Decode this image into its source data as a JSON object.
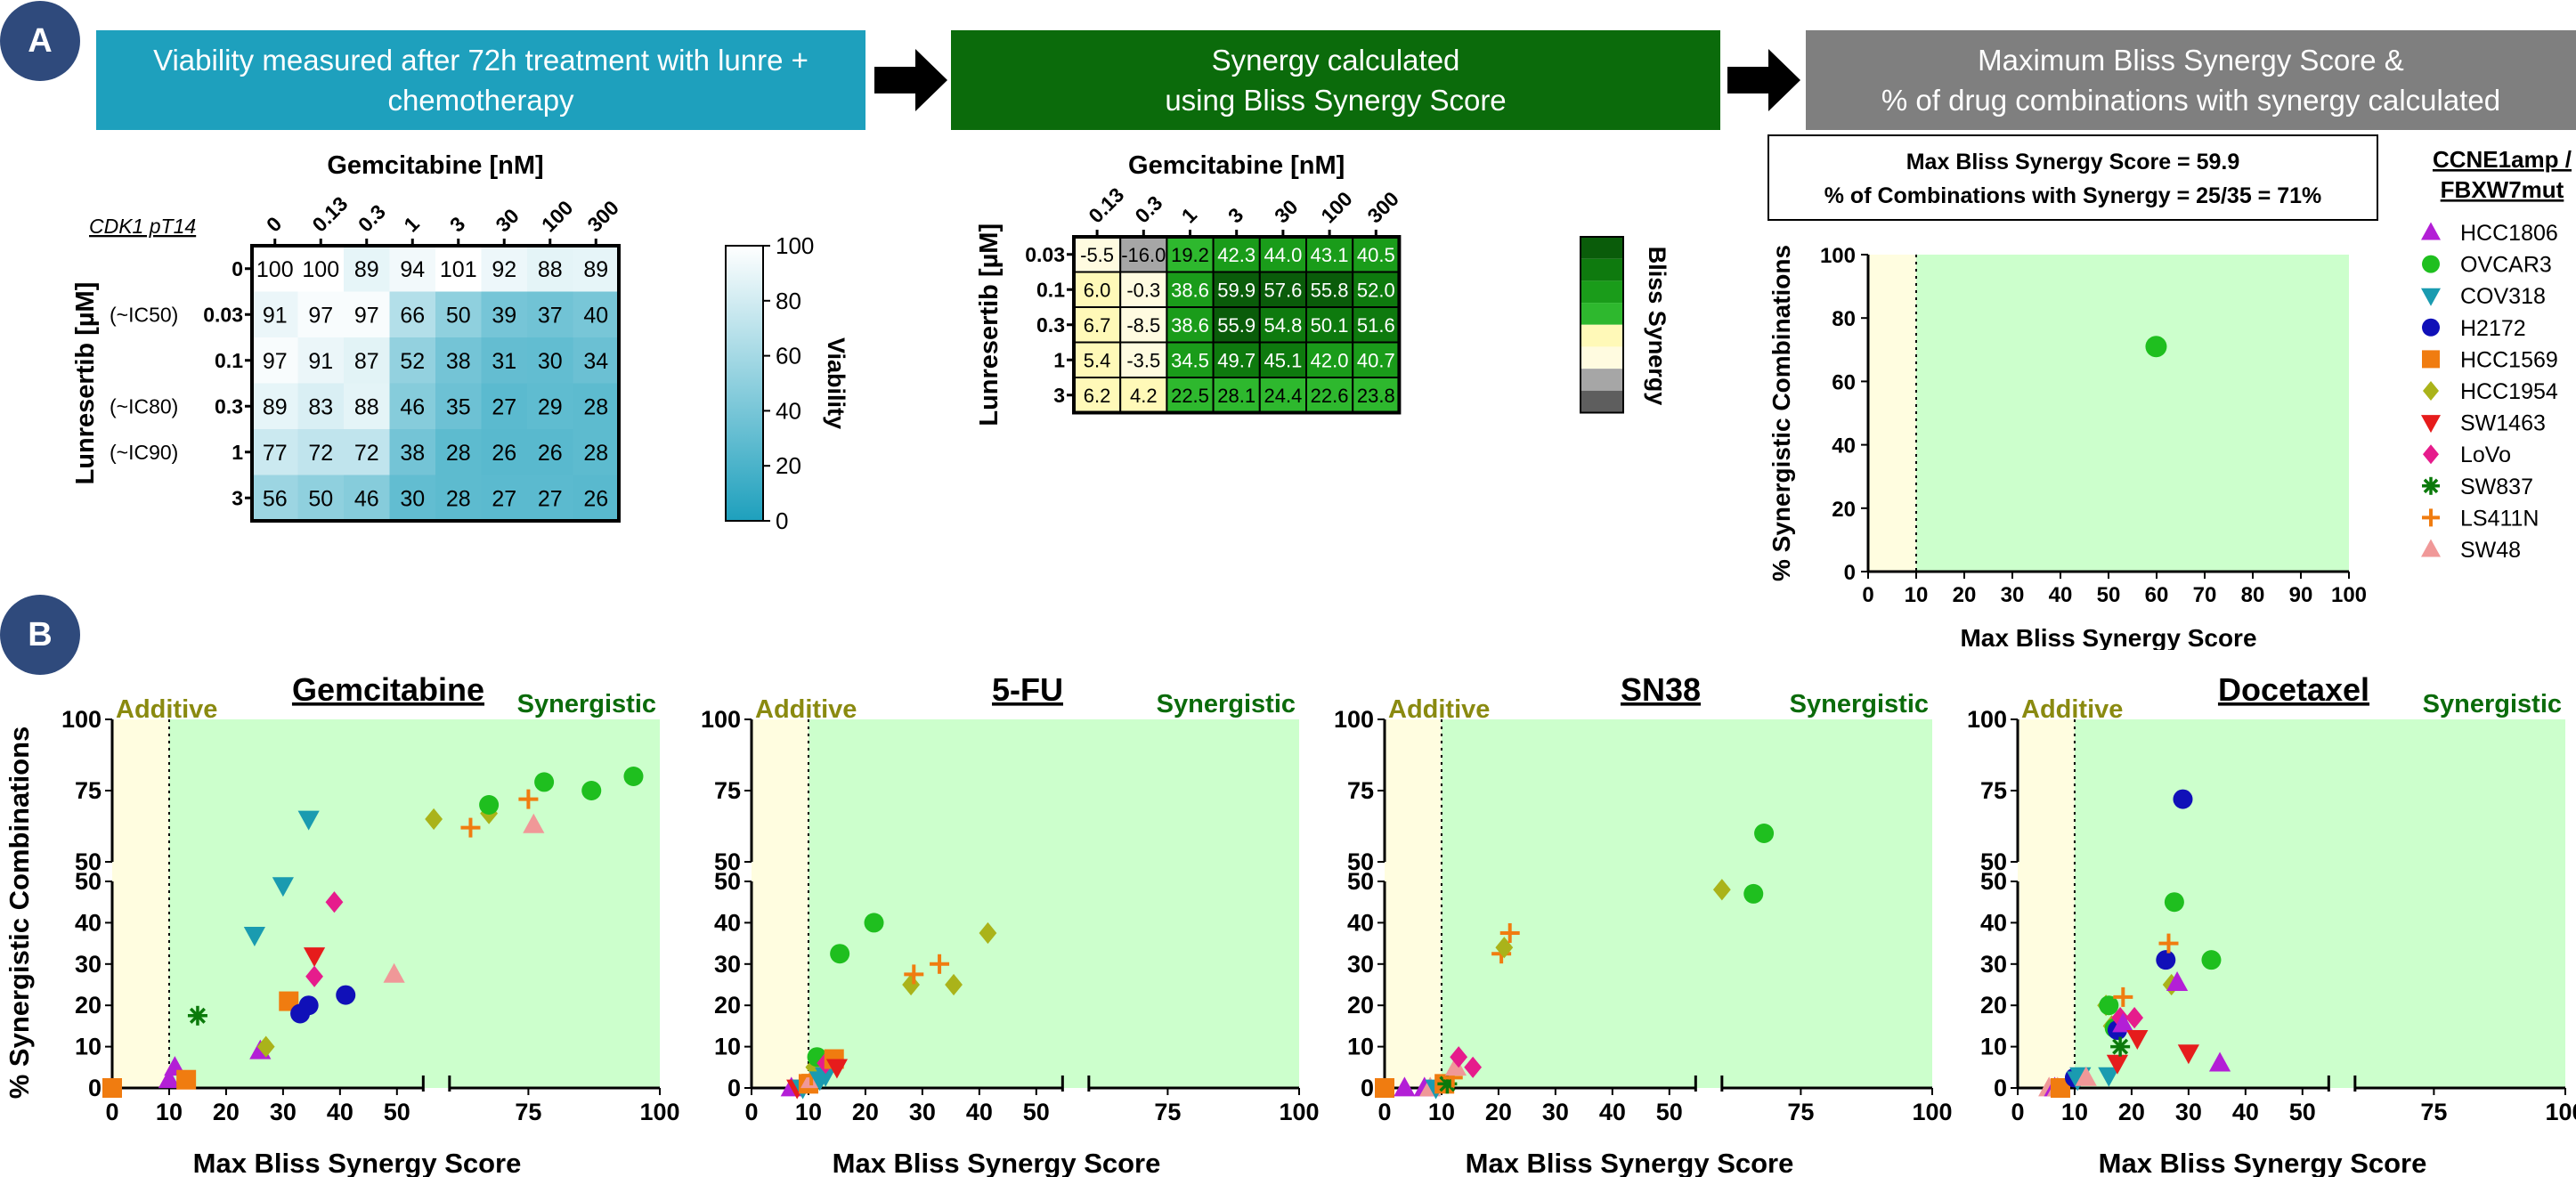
{
  "panel_a": {
    "label": "A",
    "step1": "Viability measured after 72h treatment with lunre + chemotherapy",
    "step2_line1": "Synergy calculated",
    "step2_line2": "using Bliss Synergy Score",
    "step3_line1": "Maximum Bliss Synergy Score &",
    "step3_line2": "% of drug combinations with synergy calculated",
    "colors": {
      "step1": "#1ea0bd",
      "step2": "#0b6b0b",
      "step3": "#7f7f7f",
      "label_circle": "#2f4a7c"
    },
    "viability": {
      "side_note": "CDK1 pT14",
      "xlabel": "Gemcitabine [nM]",
      "ylabel": "Lunresertib [µM]",
      "cols": [
        "0",
        "0.13",
        "0.3",
        "1",
        "3",
        "30",
        "100",
        "300"
      ],
      "rows": [
        "0",
        "0.03",
        "0.1",
        "0.3",
        "1",
        "3"
      ],
      "row_notes": [
        "",
        "(~IC50)",
        "",
        "(~IC80)",
        "(~IC90)",
        ""
      ],
      "values": [
        [
          100,
          100,
          89,
          94,
          101,
          92,
          88,
          89
        ],
        [
          91,
          97,
          97,
          66,
          50,
          39,
          37,
          40
        ],
        [
          97,
          91,
          87,
          52,
          38,
          31,
          30,
          34
        ],
        [
          89,
          83,
          88,
          46,
          35,
          27,
          29,
          28
        ],
        [
          77,
          72,
          72,
          38,
          28,
          26,
          26,
          28
        ],
        [
          56,
          50,
          46,
          30,
          28,
          27,
          27,
          26
        ]
      ],
      "colorbar_label": "Viability",
      "colorbar_ticks": [
        "100",
        "80",
        "60",
        "40",
        "20",
        "0"
      ]
    },
    "bliss": {
      "xlabel": "Gemcitabine [nM]",
      "ylabel": "Lunresertib [µM]",
      "cols": [
        "0.13",
        "0.3",
        "1",
        "3",
        "30",
        "100",
        "300"
      ],
      "rows": [
        "0.03",
        "0.1",
        "0.3",
        "1",
        "3"
      ],
      "values": [
        [
          "-5.5",
          "-16.0",
          "19.2",
          "42.3",
          "44.0",
          "43.1",
          "40.5"
        ],
        [
          "6.0",
          "-0.3",
          "38.6",
          "59.9",
          "57.6",
          "55.8",
          "52.0"
        ],
        [
          "6.7",
          "-8.5",
          "38.6",
          "55.9",
          "54.8",
          "50.1",
          "51.6"
        ],
        [
          "5.4",
          "-3.5",
          "34.5",
          "49.7",
          "45.1",
          "42.0",
          "40.7"
        ],
        [
          "6.2",
          "4.2",
          "22.5",
          "28.1",
          "24.4",
          "22.6",
          "23.8"
        ]
      ],
      "colorbar_label": "Bliss Synergy"
    },
    "summary": {
      "box_line1": "Max Bliss Synergy Score = 59.9",
      "box_line2": "% of Combinations with Synergy = 25/35 = 71%",
      "xlabel": "Max Bliss Synergy Score",
      "ylabel": "% Synergistic Combinations",
      "xticks": [
        "0",
        "10",
        "20",
        "30",
        "40",
        "50",
        "60",
        "70",
        "80",
        "90",
        "100"
      ],
      "yticks": [
        "0",
        "20",
        "40",
        "60",
        "80",
        "100"
      ]
    },
    "legend": {
      "title_line1": "CCNE1amp /",
      "title_line2": "FBXW7mut",
      "items": [
        {
          "name": "HCC1806",
          "color": "#b31fd6",
          "shape": "triangle"
        },
        {
          "name": "OVCAR3",
          "color": "#1fbf1f",
          "shape": "circle"
        },
        {
          "name": "COV318",
          "color": "#1a9bb0",
          "shape": "triangle-down"
        },
        {
          "name": "H2172",
          "color": "#1010b8",
          "shape": "circle"
        },
        {
          "name": "HCC1569",
          "color": "#f07c10",
          "shape": "square"
        },
        {
          "name": "HCC1954",
          "color": "#aab31a",
          "shape": "diamond"
        },
        {
          "name": "SW1463",
          "color": "#e61c1c",
          "shape": "triangle-down"
        },
        {
          "name": "LoVo",
          "color": "#e61c8c",
          "shape": "diamond"
        },
        {
          "name": "SW837",
          "color": "#0b7a0b",
          "shape": "star"
        },
        {
          "name": "LS411N",
          "color": "#f07c10",
          "shape": "plus"
        },
        {
          "name": "SW48",
          "color": "#f09898",
          "shape": "triangle"
        }
      ]
    }
  },
  "panel_b": {
    "label": "B",
    "ylabel": "% Synergistic Combinations",
    "additive_label": "Additive",
    "synergistic_label": "Synergistic"
  },
  "chart_data": [
    {
      "type": "heatmap",
      "title": "Gemcitabine [nM]",
      "xlabel": "Gemcitabine [nM]",
      "ylabel": "Lunresertib [µM]",
      "x": [
        "0",
        "0.13",
        "0.3",
        "1",
        "3",
        "30",
        "100",
        "300"
      ],
      "y": [
        "0",
        "0.03",
        "0.1",
        "0.3",
        "1",
        "3"
      ],
      "values": [
        [
          100,
          100,
          89,
          94,
          101,
          92,
          88,
          89
        ],
        [
          91,
          97,
          97,
          66,
          50,
          39,
          37,
          40
        ],
        [
          97,
          91,
          87,
          52,
          38,
          31,
          30,
          34
        ],
        [
          89,
          83,
          88,
          46,
          35,
          27,
          29,
          28
        ],
        [
          77,
          72,
          72,
          38,
          28,
          26,
          26,
          28
        ],
        [
          56,
          50,
          46,
          30,
          28,
          27,
          27,
          26
        ]
      ],
      "colorbar": "Viability",
      "range": [
        0,
        100
      ]
    },
    {
      "type": "heatmap",
      "title": "Gemcitabine [nM]",
      "xlabel": "Gemcitabine [nM]",
      "ylabel": "Lunresertib [µM]",
      "x": [
        "0.13",
        "0.3",
        "1",
        "3",
        "30",
        "100",
        "300"
      ],
      "y": [
        "0.03",
        "0.1",
        "0.3",
        "1",
        "3"
      ],
      "values": [
        [
          -5.5,
          -16.0,
          19.2,
          42.3,
          44.0,
          43.1,
          40.5
        ],
        [
          6.0,
          -0.3,
          38.6,
          59.9,
          57.6,
          55.8,
          52.0
        ],
        [
          6.7,
          -8.5,
          38.6,
          55.9,
          54.8,
          50.1,
          51.6
        ],
        [
          5.4,
          -3.5,
          34.5,
          49.7,
          45.1,
          42.0,
          40.7
        ],
        [
          6.2,
          4.2,
          22.5,
          28.1,
          24.4,
          22.6,
          23.8
        ]
      ],
      "colorbar": "Bliss Synergy"
    },
    {
      "type": "scatter",
      "xlabel": "Max Bliss Synergy Score",
      "ylabel": "% Synergistic Combinations",
      "xlim": [
        0,
        100
      ],
      "ylim": [
        0,
        100
      ],
      "threshold_x": 10,
      "points": [
        {
          "series": "OVCAR3",
          "x": 59.9,
          "y": 71
        }
      ]
    },
    {
      "type": "scatter",
      "title": "Gemcitabine",
      "xlabel": "Max Bliss Synergy Score",
      "ylabel": "% Synergistic Combinations",
      "xlim": [
        0,
        100
      ],
      "ylim": [
        0,
        100
      ],
      "broken_axes": true,
      "threshold_x": 10,
      "xticks": [
        "0",
        "10",
        "20",
        "30",
        "40",
        "50",
        "75",
        "100"
      ],
      "yticks": [
        "0",
        "10",
        "20",
        "30",
        "40",
        "50",
        "50",
        "75",
        "100"
      ],
      "points": [
        {
          "series": "HCC1569",
          "x": 0,
          "y": 0
        },
        {
          "series": "HCC1806",
          "x": 10,
          "y": 2
        },
        {
          "series": "HCC1806",
          "x": 11,
          "y": 5
        },
        {
          "series": "HCC1569",
          "x": 13,
          "y": 2
        },
        {
          "series": "SW837",
          "x": 15,
          "y": 17.5
        },
        {
          "series": "HCC1806",
          "x": 26,
          "y": 9
        },
        {
          "series": "HCC1954",
          "x": 27,
          "y": 10
        },
        {
          "series": "COV318",
          "x": 25,
          "y": 37
        },
        {
          "series": "COV318",
          "x": 30,
          "y": 49
        },
        {
          "series": "HCC1569",
          "x": 31,
          "y": 21
        },
        {
          "series": "H2172",
          "x": 33,
          "y": 18
        },
        {
          "series": "H2172",
          "x": 34.5,
          "y": 20
        },
        {
          "series": "COV318",
          "x": 34.5,
          "y": 65
        },
        {
          "series": "SW1463",
          "x": 35.5,
          "y": 32
        },
        {
          "series": "LoVo",
          "x": 35.5,
          "y": 27
        },
        {
          "series": "LoVo",
          "x": 39,
          "y": 45
        },
        {
          "series": "H2172",
          "x": 41,
          "y": 22.5
        },
        {
          "series": "SW48",
          "x": 49.5,
          "y": 27.5
        },
        {
          "series": "HCC1954",
          "x": 57,
          "y": 65
        },
        {
          "series": "LS411N",
          "x": 64,
          "y": 62
        },
        {
          "series": "HCC1954",
          "x": 67.5,
          "y": 67
        },
        {
          "series": "OVCAR3",
          "x": 67.5,
          "y": 70
        },
        {
          "series": "LS411N",
          "x": 75,
          "y": 72
        },
        {
          "series": "SW48",
          "x": 76,
          "y": 63
        },
        {
          "series": "OVCAR3",
          "x": 78,
          "y": 78
        },
        {
          "series": "OVCAR3",
          "x": 87,
          "y": 75
        },
        {
          "series": "OVCAR3",
          "x": 95,
          "y": 80
        }
      ]
    },
    {
      "type": "scatter",
      "title": "5-FU",
      "xlabel": "Max Bliss Synergy Score",
      "ylabel": "% Synergistic Combinations",
      "xlim": [
        0,
        100
      ],
      "ylim": [
        0,
        100
      ],
      "broken_axes": true,
      "threshold_x": 10,
      "points": [
        {
          "series": "HCC1806",
          "x": 7,
          "y": 0
        },
        {
          "series": "SW1463",
          "x": 8,
          "y": 0
        },
        {
          "series": "COV318",
          "x": 9,
          "y": 0
        },
        {
          "series": "HCC1569",
          "x": 10,
          "y": 1
        },
        {
          "series": "SW48",
          "x": 10.5,
          "y": 2
        },
        {
          "series": "LS411N",
          "x": 10.5,
          "y": 3
        },
        {
          "series": "HCC1954",
          "x": 11,
          "y": 5
        },
        {
          "series": "OVCAR3",
          "x": 11.5,
          "y": 7.5
        },
        {
          "series": "COV318",
          "x": 12,
          "y": 2
        },
        {
          "series": "COV318",
          "x": 13,
          "y": 3
        },
        {
          "series": "LoVo",
          "x": 13,
          "y": 6
        },
        {
          "series": "HCC1569",
          "x": 14.5,
          "y": 7
        },
        {
          "series": "SW1463",
          "x": 15,
          "y": 5
        },
        {
          "series": "OVCAR3",
          "x": 15.5,
          "y": 32.5
        },
        {
          "series": "OVCAR3",
          "x": 21.5,
          "y": 40
        },
        {
          "series": "HCC1954",
          "x": 28,
          "y": 25
        },
        {
          "series": "LS411N",
          "x": 28.5,
          "y": 27.5
        },
        {
          "series": "LS411N",
          "x": 33,
          "y": 30
        },
        {
          "series": "HCC1954",
          "x": 35.5,
          "y": 25
        },
        {
          "series": "HCC1954",
          "x": 41.5,
          "y": 37.5
        }
      ]
    },
    {
      "type": "scatter",
      "title": "SN38",
      "xlabel": "Max Bliss Synergy Score",
      "ylabel": "% Synergistic Combinations",
      "xlim": [
        0,
        100
      ],
      "ylim": [
        0,
        100
      ],
      "broken_axes": true,
      "threshold_x": 10,
      "points": [
        {
          "series": "HCC1569",
          "x": 0,
          "y": 0
        },
        {
          "series": "HCC1806",
          "x": 3.5,
          "y": 0
        },
        {
          "series": "HCC1806",
          "x": 7,
          "y": 0
        },
        {
          "series": "SW48",
          "x": 8,
          "y": 0
        },
        {
          "series": "COV318",
          "x": 9,
          "y": 0
        },
        {
          "series": "HCC1569",
          "x": 10.5,
          "y": 1
        },
        {
          "series": "SW837",
          "x": 11,
          "y": 1
        },
        {
          "series": "LS411N",
          "x": 12,
          "y": 2.5
        },
        {
          "series": "SW48",
          "x": 12.5,
          "y": 5
        },
        {
          "series": "LoVo",
          "x": 13,
          "y": 7.5
        },
        {
          "series": "LoVo",
          "x": 15.5,
          "y": 5
        },
        {
          "series": "LS411N",
          "x": 20.5,
          "y": 32.5
        },
        {
          "series": "HCC1954",
          "x": 21,
          "y": 34
        },
        {
          "series": "LS411N",
          "x": 22,
          "y": 37.5
        },
        {
          "series": "HCC1954",
          "x": 60,
          "y": 48
        },
        {
          "series": "OVCAR3",
          "x": 66,
          "y": 47
        },
        {
          "series": "OVCAR3",
          "x": 68,
          "y": 60
        }
      ]
    },
    {
      "type": "scatter",
      "title": "Docetaxel",
      "xlabel": "Max Bliss Synergy Score",
      "ylabel": "% Synergistic Combinations",
      "xlim": [
        0,
        100
      ],
      "ylim": [
        0,
        100
      ],
      "broken_axes": true,
      "threshold_x": 10,
      "points": [
        {
          "series": "SW48",
          "x": 5.5,
          "y": 0
        },
        {
          "series": "HCC1806",
          "x": 6.5,
          "y": 0
        },
        {
          "series": "SW48",
          "x": 7,
          "y": 0
        },
        {
          "series": "HCC1569",
          "x": 7.5,
          "y": 0
        },
        {
          "series": "H2172",
          "x": 10,
          "y": 2.5
        },
        {
          "series": "COV318",
          "x": 10.5,
          "y": 2
        },
        {
          "series": "COV318",
          "x": 11,
          "y": 3
        },
        {
          "series": "SW48",
          "x": 12,
          "y": 2.5
        },
        {
          "series": "COV318",
          "x": 16,
          "y": 3
        },
        {
          "series": "HCC1954",
          "x": 15.5,
          "y": 20
        },
        {
          "series": "OVCAR3",
          "x": 16,
          "y": 20
        },
        {
          "series": "HCC1954",
          "x": 16.5,
          "y": 15
        },
        {
          "series": "OVCAR3",
          "x": 17,
          "y": 14.5
        },
        {
          "series": "H2172",
          "x": 17.5,
          "y": 14
        },
        {
          "series": "SW1463",
          "x": 17.5,
          "y": 6
        },
        {
          "series": "SW837",
          "x": 18,
          "y": 10
        },
        {
          "series": "LoVo",
          "x": 18,
          "y": 17
        },
        {
          "series": "HCC1806",
          "x": 18.5,
          "y": 15.5
        },
        {
          "series": "LS411N",
          "x": 18.5,
          "y": 22
        },
        {
          "series": "LoVo",
          "x": 20.5,
          "y": 17
        },
        {
          "series": "SW1463",
          "x": 21,
          "y": 12
        },
        {
          "series": "H2172",
          "x": 26,
          "y": 31
        },
        {
          "series": "LS411N",
          "x": 26.5,
          "y": 35
        },
        {
          "series": "HCC1954",
          "x": 27,
          "y": 25
        },
        {
          "series": "OVCAR3",
          "x": 27.5,
          "y": 45
        },
        {
          "series": "HCC1806",
          "x": 28,
          "y": 25.5
        },
        {
          "series": "H2172",
          "x": 29,
          "y": 72
        },
        {
          "series": "SW1463",
          "x": 30,
          "y": 8.5
        },
        {
          "series": "OVCAR3",
          "x": 34,
          "y": 31
        },
        {
          "series": "HCC1806",
          "x": 35.5,
          "y": 6
        }
      ]
    }
  ]
}
